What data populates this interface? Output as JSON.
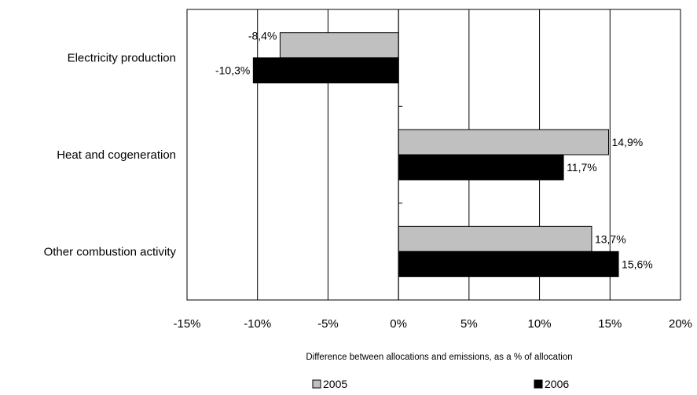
{
  "chart_data": {
    "type": "bar",
    "orientation": "horizontal",
    "title": "",
    "categories": [
      "Electricity production",
      "Heat and cogeneration",
      "Other combustion activity"
    ],
    "series": [
      {
        "name": "2005",
        "values": [
          -8.4,
          14.9,
          13.7
        ],
        "labels": [
          "-8,4%",
          "14,9%",
          "13,7%"
        ],
        "color": "#c0c0c0"
      },
      {
        "name": "2006",
        "values": [
          -10.3,
          11.7,
          15.6
        ],
        "labels": [
          "-10,3%",
          "11,7%",
          "15,6%"
        ],
        "color": "#000000"
      }
    ],
    "xlim": [
      -15,
      20
    ],
    "xticks": [
      -15,
      -10,
      -5,
      0,
      5,
      10,
      15,
      20
    ],
    "xtick_labels": [
      "-15%",
      "-10%",
      "-5%",
      "0%",
      "5%",
      "10%",
      "15%",
      "20%"
    ],
    "xlabel": "Difference between allocations and emissions, as a % of allocation",
    "ylabel": "",
    "grid": "vertical",
    "legend_position": "bottom"
  }
}
